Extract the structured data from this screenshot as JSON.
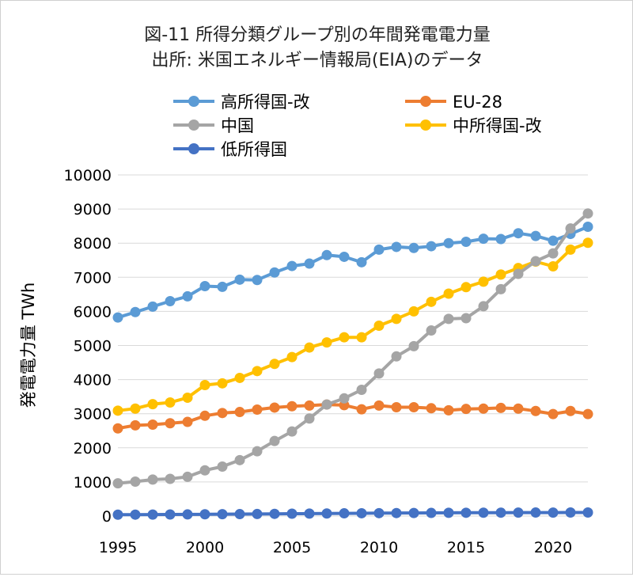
{
  "chart_data": {
    "type": "line",
    "title": "図-11 所得分類グループ別の年間発電電力量",
    "subtitle": "出所: 米国エネルギー情報局(EIA)のデータ",
    "xlabel": "",
    "ylabel": "発電電力量 TWh",
    "xlim": [
      1995,
      2022
    ],
    "ylim": [
      0,
      10000
    ],
    "yticks": [
      "0",
      "1000",
      "2000",
      "3000",
      "4000",
      "5000",
      "6000",
      "7000",
      "8000",
      "9000",
      "10000"
    ],
    "xticks": [
      "1995",
      "2000",
      "2005",
      "2010",
      "2015",
      "2020"
    ],
    "grid": "horizontal",
    "legend_position": "top",
    "x": [
      1995,
      1996,
      1997,
      1998,
      1999,
      2000,
      2001,
      2002,
      2003,
      2004,
      2005,
      2006,
      2007,
      2008,
      2009,
      2010,
      2011,
      2012,
      2013,
      2014,
      2015,
      2016,
      2017,
      2018,
      2019,
      2020,
      2021,
      2022
    ],
    "series": [
      {
        "name": "高所得国-改",
        "color": "#5B9BD5",
        "values": [
          5820,
          5980,
          6140,
          6300,
          6440,
          6740,
          6720,
          6930,
          6920,
          7140,
          7330,
          7400,
          7650,
          7600,
          7440,
          7810,
          7890,
          7860,
          7910,
          8000,
          8040,
          8130,
          8120,
          8290,
          8210,
          8070,
          8270,
          8480
        ]
      },
      {
        "name": "EU-28",
        "color": "#ED7D31",
        "values": [
          2570,
          2660,
          2680,
          2720,
          2760,
          2940,
          3020,
          3050,
          3120,
          3180,
          3220,
          3240,
          3270,
          3250,
          3130,
          3240,
          3190,
          3190,
          3160,
          3100,
          3140,
          3150,
          3170,
          3150,
          3080,
          2990,
          3080,
          2990
        ]
      },
      {
        "name": "中国",
        "color": "#A5A5A5",
        "values": [
          960,
          1010,
          1070,
          1090,
          1150,
          1340,
          1450,
          1640,
          1900,
          2200,
          2480,
          2860,
          3270,
          3450,
          3700,
          4180,
          4680,
          4980,
          5440,
          5780,
          5800,
          6150,
          6650,
          7100,
          7470,
          7700,
          8430,
          8870
        ]
      },
      {
        "name": "中所得国-改",
        "color": "#FFC000",
        "values": [
          3090,
          3150,
          3280,
          3330,
          3470,
          3840,
          3890,
          4050,
          4250,
          4460,
          4660,
          4940,
          5090,
          5240,
          5240,
          5580,
          5780,
          6000,
          6280,
          6520,
          6710,
          6870,
          7080,
          7270,
          7460,
          7320,
          7810,
          8010
        ]
      },
      {
        "name": "低所得国",
        "color": "#4472C4",
        "values": [
          40,
          42,
          44,
          46,
          48,
          52,
          55,
          57,
          60,
          65,
          70,
          73,
          76,
          80,
          82,
          85,
          88,
          90,
          92,
          95,
          97,
          98,
          100,
          102,
          103,
          101,
          104,
          105
        ]
      }
    ]
  }
}
